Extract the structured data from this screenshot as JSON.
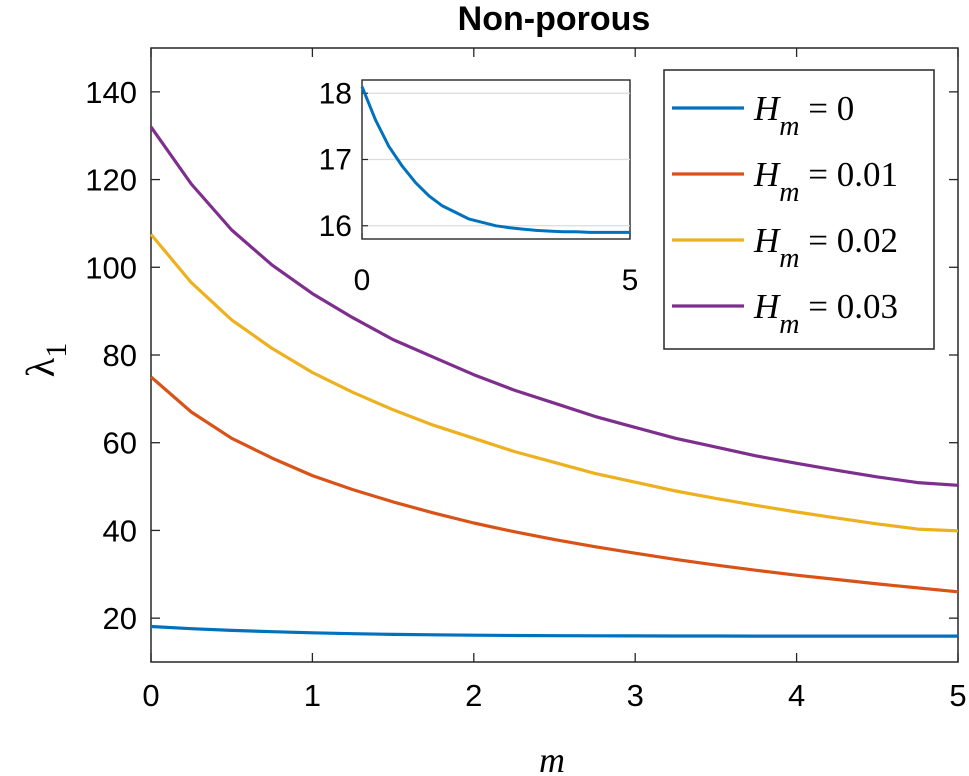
{
  "chart_data": {
    "type": "line",
    "title": "Non-porous",
    "xlabel": "m",
    "ylabel": {
      "symbol": "λ",
      "subscript": "1"
    },
    "xlim": [
      0,
      5
    ],
    "ylim": [
      10,
      150
    ],
    "xticks": [
      0,
      1,
      2,
      3,
      4,
      5
    ],
    "yticks": [
      20,
      40,
      60,
      80,
      100,
      120,
      140
    ],
    "grid": false,
    "legend_position": "top-right",
    "x": [
      0,
      0.25,
      0.5,
      0.75,
      1,
      1.25,
      1.5,
      1.75,
      2,
      2.25,
      2.5,
      2.75,
      3,
      3.25,
      3.5,
      3.75,
      4,
      4.25,
      4.5,
      4.75,
      5
    ],
    "series": [
      {
        "name": "H_m = 0",
        "legend": {
          "symbol": "H",
          "subscript": "m",
          "rest": " = 0"
        },
        "color": "#0072BD",
        "values": [
          18.1,
          17.6,
          17.2,
          16.9,
          16.65,
          16.45,
          16.3,
          16.2,
          16.1,
          16.05,
          16.0,
          15.97,
          15.95,
          15.93,
          15.92,
          15.91,
          15.91,
          15.9,
          15.9,
          15.9,
          15.9
        ]
      },
      {
        "name": "H_m = 0.01",
        "legend": {
          "symbol": "H",
          "subscript": "m",
          "rest": " = 0.01"
        },
        "color": "#D95319",
        "values": [
          75,
          67,
          61,
          56.5,
          52.5,
          49.3,
          46.5,
          44,
          41.7,
          39.7,
          37.9,
          36.3,
          34.8,
          33.4,
          32.1,
          30.9,
          29.8,
          28.8,
          27.8,
          26.9,
          26
        ]
      },
      {
        "name": "H_m = 0.02",
        "legend": {
          "symbol": "H",
          "subscript": "m",
          "rest": " = 0.02"
        },
        "color": "#EDB120",
        "values": [
          107.5,
          96.5,
          88,
          81.5,
          76,
          71.5,
          67.5,
          64,
          61,
          58,
          55.5,
          53,
          51,
          49,
          47.3,
          45.7,
          44.2,
          42.8,
          41.5,
          40.3,
          39.9
        ]
      },
      {
        "name": "H_m = 0.03",
        "legend": {
          "symbol": "H",
          "subscript": "m",
          "rest": " = 0.03"
        },
        "color": "#7E2F8E",
        "values": [
          132,
          119,
          108.5,
          100.5,
          94,
          88.5,
          83.5,
          79.5,
          75.5,
          72,
          69,
          66,
          63.5,
          61,
          59,
          57,
          55.3,
          53.7,
          52.2,
          50.9,
          50.3
        ]
      }
    ],
    "inset": {
      "type": "line",
      "series_name": "H_m = 0",
      "color": "#0072BD",
      "xlim": [
        0,
        5
      ],
      "ylim": [
        15.8,
        18.2
      ],
      "xticks": [
        0,
        5
      ],
      "yticks": [
        16,
        17,
        18
      ],
      "grid": true,
      "x": [
        0,
        0.25,
        0.5,
        0.75,
        1,
        1.25,
        1.5,
        1.75,
        2,
        2.25,
        2.5,
        2.75,
        3,
        3.25,
        3.5,
        3.75,
        4,
        4.25,
        4.5,
        4.75,
        5
      ],
      "values": [
        18.1,
        17.6,
        17.2,
        16.9,
        16.65,
        16.45,
        16.3,
        16.2,
        16.1,
        16.05,
        16.0,
        15.97,
        15.95,
        15.93,
        15.92,
        15.91,
        15.91,
        15.9,
        15.9,
        15.9,
        15.9
      ]
    }
  }
}
